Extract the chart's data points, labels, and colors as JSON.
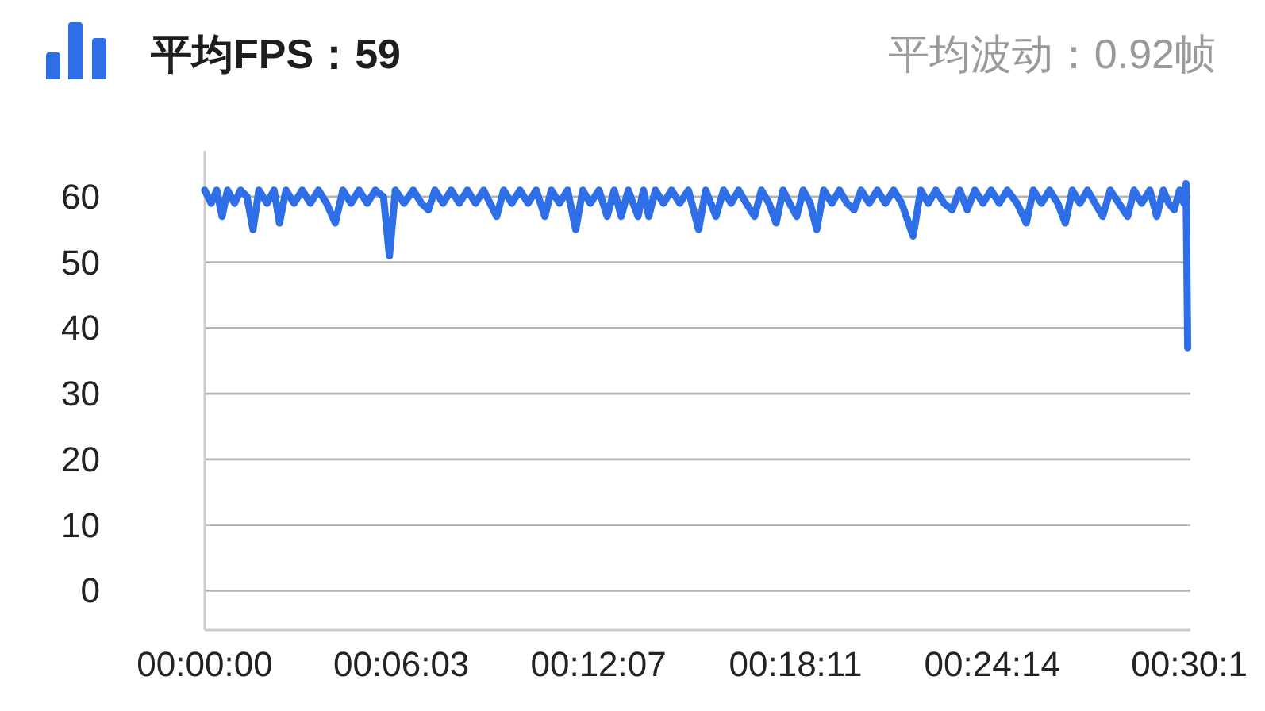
{
  "chart_data": {
    "type": "line",
    "title": "平均FPS：59",
    "subtitle": "平均波动：0.92帧",
    "x": [
      0,
      12,
      22,
      32,
      42,
      55,
      66,
      78,
      89,
      100,
      115,
      128,
      138,
      150,
      165,
      180,
      195,
      210,
      225,
      241,
      255,
      270,
      285,
      300,
      315,
      330,
      341,
      352,
      368,
      385,
      400,
      413,
      425,
      440,
      455,
      470,
      485,
      500,
      515,
      527,
      539,
      552,
      567,
      582,
      597,
      612,
      628,
      640,
      655,
      670,
      685,
      698,
      712,
      728,
      743,
      756,
      769,
      782,
      800,
      810,
      820,
      832,
      847,
      862,
      877,
      893,
      912,
      925,
      944,
      958,
      972,
      986,
      1000,
      1015,
      1028,
      1042,
      1055,
      1068,
      1080,
      1093,
      1105,
      1118,
      1130,
      1143,
      1158,
      1172,
      1186,
      1199,
      1212,
      1227,
      1242,
      1257,
      1272,
      1287,
      1308,
      1322,
      1336,
      1350,
      1365,
      1380,
      1394,
      1408,
      1422,
      1437,
      1452,
      1467,
      1482,
      1500,
      1517,
      1530,
      1545,
      1560,
      1575,
      1589,
      1602,
      1616,
      1630,
      1644,
      1658,
      1672,
      1688,
      1704,
      1716,
      1730,
      1745,
      1758,
      1770,
      1780,
      1790,
      1800,
      1808,
      1812,
      1815
    ],
    "series": [
      {
        "color": "#2e6fe8",
        "values": [
          61,
          59,
          61,
          57,
          61,
          59,
          61,
          60,
          55,
          61,
          59,
          61,
          56,
          61,
          59,
          61,
          59,
          61,
          59,
          56,
          61,
          59,
          61,
          59,
          61,
          60,
          51,
          61,
          59,
          61,
          59,
          58,
          61,
          59,
          61,
          59,
          61,
          59,
          61,
          59,
          57,
          61,
          59,
          61,
          59,
          61,
          57,
          61,
          59,
          61,
          55,
          61,
          59,
          61,
          57,
          61,
          57,
          61,
          57,
          61,
          57,
          61,
          59,
          61,
          59,
          61,
          55,
          61,
          57,
          61,
          59,
          61,
          59,
          57,
          61,
          59,
          56,
          61,
          59,
          57,
          61,
          59,
          55,
          61,
          59,
          61,
          59,
          58,
          61,
          59,
          61,
          59,
          61,
          59,
          54,
          61,
          59,
          61,
          59,
          58,
          61,
          58,
          61,
          59,
          61,
          59,
          61,
          59,
          56,
          61,
          59,
          61,
          59,
          56,
          61,
          59,
          61,
          59,
          57,
          61,
          59,
          57,
          61,
          59,
          61,
          57,
          61,
          59,
          58,
          61,
          59,
          62,
          37
        ]
      }
    ],
    "xlim": [
      0,
      1820
    ],
    "xticks": [
      {
        "value": 0,
        "label": "00:00:00"
      },
      {
        "value": 363,
        "label": "00:06:03"
      },
      {
        "value": 727,
        "label": "00:12:07"
      },
      {
        "value": 1091,
        "label": "00:18:11"
      },
      {
        "value": 1454,
        "label": "00:24:14"
      },
      {
        "value": 1818,
        "label": "00:30:1"
      }
    ],
    "ylim": [
      -6,
      67
    ],
    "yticks": [
      0,
      10,
      20,
      30,
      40,
      50,
      60
    ],
    "grid": "y",
    "line_style": "solid"
  }
}
